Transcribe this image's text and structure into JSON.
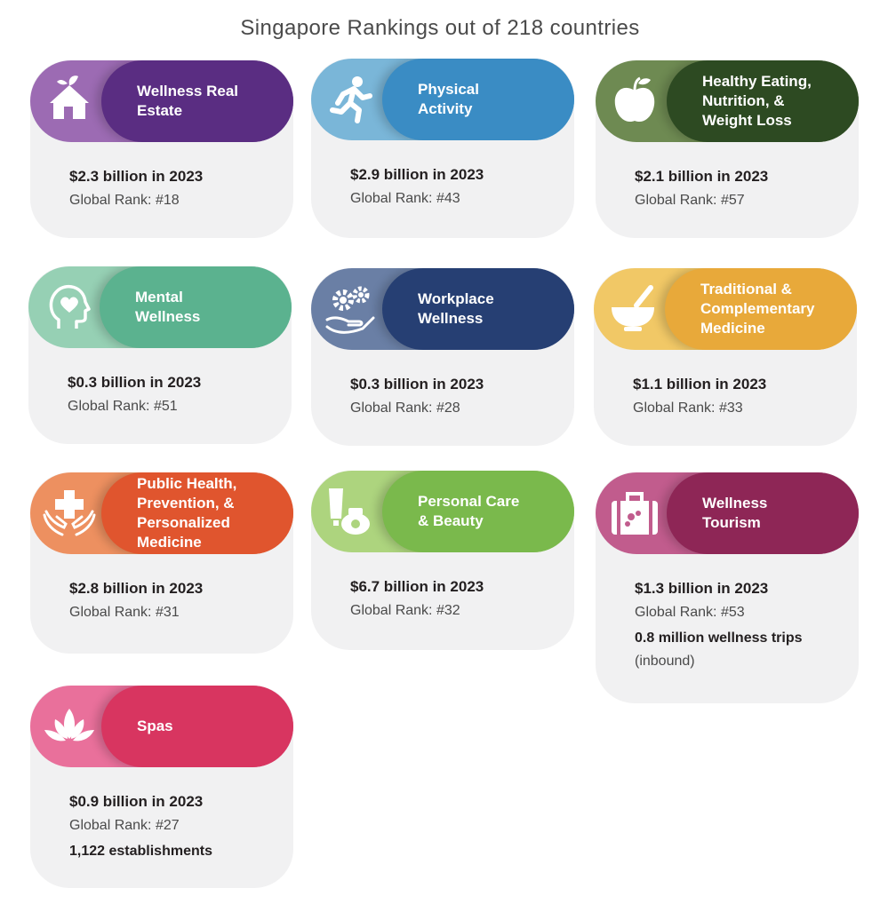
{
  "title": "Singapore Rankings out of 218 countries",
  "cards": [
    {
      "category": "Wellness Real\nEstate",
      "value": "$2.3 billion in 2023",
      "rank": "Global Rank: #18",
      "icon": "house-leaf-icon",
      "light": "#9c6bb3",
      "dark": "#5a2d82"
    },
    {
      "category": "Physical\nActivity",
      "value": "$2.9 billion in 2023",
      "rank": "Global Rank: #43",
      "icon": "runner-icon",
      "light": "#7ab6d8",
      "dark": "#3a8cc4"
    },
    {
      "category": "Healthy Eating,\nNutrition, &\nWeight Loss",
      "value": "$2.1 billion in 2023",
      "rank": "Global Rank: #57",
      "icon": "apple-icon",
      "light": "#6e8a52",
      "dark": "#2d4a22"
    },
    {
      "category": "Mental\nWellness",
      "value": "$0.3 billion in 2023",
      "rank": "Global Rank: #51",
      "icon": "head-heart-icon",
      "light": "#96d0b4",
      "dark": "#5bb28f"
    },
    {
      "category": "Workplace\nWellness",
      "value": "$0.3 billion in 2023",
      "rank": "Global Rank: #28",
      "icon": "gears-hand-icon",
      "light": "#6a7fa5",
      "dark": "#263f73"
    },
    {
      "category": "Traditional &\nComplementary\nMedicine",
      "value": "$1.1 billion in 2023",
      "rank": "Global Rank: #33",
      "icon": "mortar-pestle-icon",
      "light": "#f1c866",
      "dark": "#e8a93a"
    },
    {
      "category": "Public Health,\nPrevention, &\nPersonalized\nMedicine",
      "value": "$2.8 billion in 2023",
      "rank": "Global Rank: #31",
      "icon": "hands-cross-icon",
      "light": "#ed9060",
      "dark": "#e0552e"
    },
    {
      "category": "Personal Care\n& Beauty",
      "value": "$6.7 billion in 2023",
      "rank": "Global Rank: #32",
      "icon": "cosmetics-icon",
      "light": "#add47e",
      "dark": "#7ab94c"
    },
    {
      "category": "Wellness\nTourism",
      "value": "$1.3 billion in 2023",
      "rank": "Global Rank: #53",
      "extra": "0.8 million wellness trips",
      "extra2": "(inbound)",
      "icon": "suitcase-icon",
      "light": "#c15c8d",
      "dark": "#8e2656"
    },
    {
      "category": "Spas",
      "value": "$0.9 billion in 2023",
      "rank": "Global Rank: #27",
      "extra": "1,122 establishments",
      "icon": "lotus-icon",
      "light": "#e9709b",
      "dark": "#d83560"
    }
  ]
}
